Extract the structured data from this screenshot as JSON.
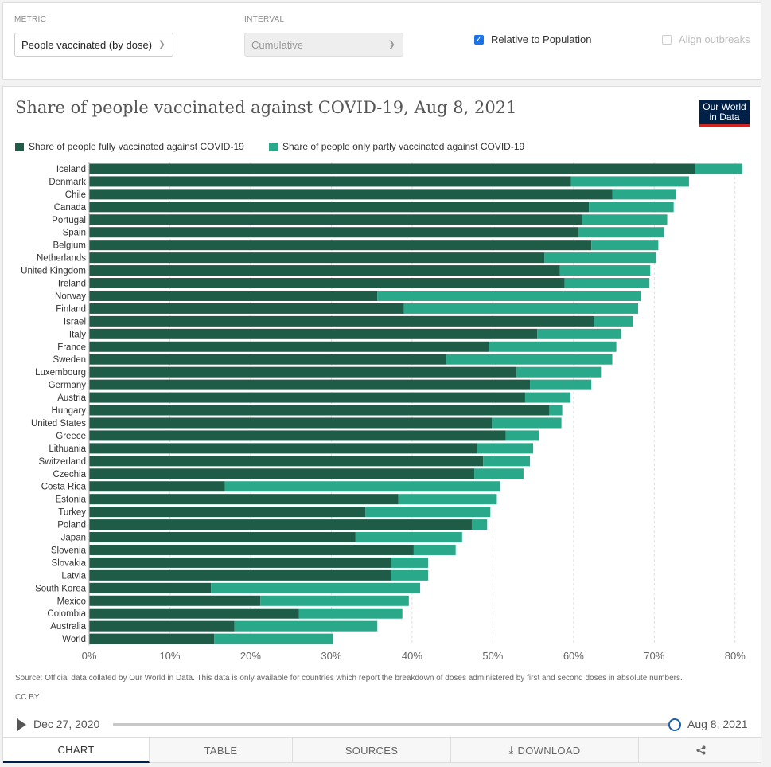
{
  "controls": {
    "metric_label": "METRIC",
    "metric_value": "People vaccinated (by dose)",
    "interval_label": "INTERVAL",
    "interval_value": "Cumulative",
    "relative_label": "Relative to Population",
    "align_label": "Align outbreaks"
  },
  "logo": {
    "line1": "Our World",
    "line2": "in Data"
  },
  "colors": {
    "full": "#1f5c48",
    "partial": "#2aa88a"
  },
  "chart_data": {
    "type": "bar",
    "orientation": "horizontal",
    "stacked": true,
    "title": "Share of people vaccinated against COVID-19, Aug 8, 2021",
    "categories": [
      "Iceland",
      "Denmark",
      "Chile",
      "Canada",
      "Portugal",
      "Spain",
      "Belgium",
      "Netherlands",
      "United Kingdom",
      "Ireland",
      "Norway",
      "Finland",
      "Israel",
      "Italy",
      "France",
      "Sweden",
      "Luxembourg",
      "Germany",
      "Austria",
      "Hungary",
      "United States",
      "Greece",
      "Lithuania",
      "Switzerland",
      "Czechia",
      "Costa Rica",
      "Estonia",
      "Turkey",
      "Poland",
      "Japan",
      "Slovenia",
      "Slovakia",
      "Latvia",
      "South Korea",
      "Mexico",
      "Colombia",
      "Australia",
      "World"
    ],
    "series": [
      {
        "name": "Share of people fully vaccinated against COVID-19",
        "values": [
          75,
          59.7,
          64.8,
          61.9,
          61.1,
          60.6,
          62.2,
          56.4,
          58.3,
          58.9,
          35.7,
          39,
          62.5,
          55.5,
          49.5,
          44.2,
          52.9,
          54.6,
          54,
          57,
          49.9,
          51.6,
          48,
          48.8,
          47.7,
          16.8,
          38.3,
          34.2,
          47.4,
          33,
          40.2,
          37.4,
          37.4,
          15.1,
          21.2,
          26,
          18,
          15.5
        ]
      },
      {
        "name": "Share of people only partly vaccinated against COVID-19",
        "values": [
          5.9,
          14.6,
          7.9,
          10.5,
          10.5,
          10.6,
          8.3,
          13.8,
          11.2,
          10.5,
          32.6,
          29,
          4.9,
          10.4,
          15.8,
          20.6,
          10.5,
          7.6,
          5.6,
          1.6,
          8.6,
          4.1,
          7,
          5.8,
          6.1,
          34.1,
          12.2,
          15.5,
          1.9,
          13.2,
          5.2,
          4.6,
          4.6,
          25.9,
          18.4,
          12.8,
          17.7,
          14.7
        ]
      }
    ],
    "x_ticks": [
      "0%",
      "10%",
      "20%",
      "30%",
      "40%",
      "50%",
      "60%",
      "70%",
      "80%"
    ],
    "xlim": [
      0,
      81.5
    ],
    "legend": "top-left",
    "grid": true
  },
  "source": "Source: Official data collated by Our World in Data. This data is only available for countries which report the breakdown of doses administered by first and second doses in absolute numbers.",
  "license": "CC BY",
  "timeline": {
    "start": "Dec 27, 2020",
    "end": "Aug 8, 2021",
    "position": 1.0
  },
  "tabs": [
    "CHART",
    "TABLE",
    "SOURCES",
    "DOWNLOAD",
    ""
  ]
}
